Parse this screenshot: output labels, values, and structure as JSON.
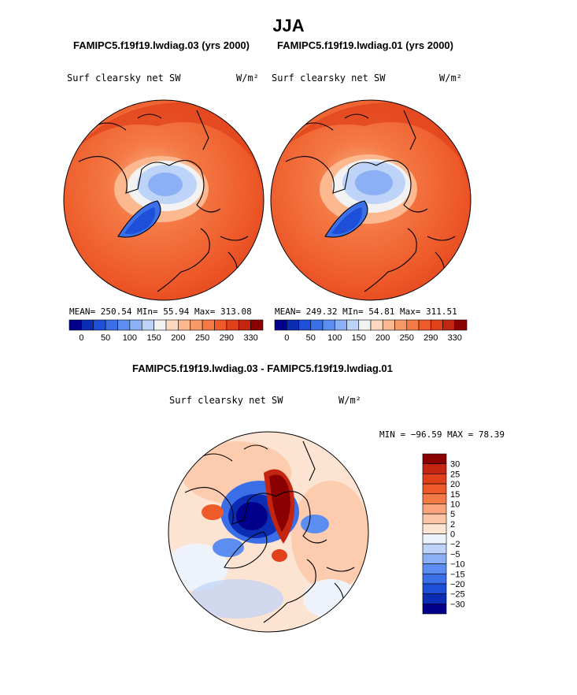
{
  "figure": {
    "season": "JJA",
    "case1_title": "FAMIPC5.f19f19.lwdiag.03 (yrs 2000)",
    "case2_title": "FAMIPC5.f19f19.lwdiag.01 (yrs 2000)",
    "diff_title": "FAMIPC5.f19f19.lwdiag.03 - FAMIPC5.f19f19.lwdiag.01",
    "variable": "Surf clearsky net SW",
    "units": "W/m²"
  },
  "panels": {
    "case1": {
      "stats": "MEAN= 250.54   MIn=  55.94   Max= 313.08"
    },
    "case2": {
      "stats": "MEAN= 249.32   MIn=  54.81   Max= 311.51"
    },
    "diff": {
      "stats": "MIN = −96.59 MAX =  78.39"
    }
  },
  "colors": {
    "abs_scale": [
      "#00008b",
      "#0a2db4",
      "#1e4fd8",
      "#3b6fe8",
      "#5b8ef0",
      "#8cb0f5",
      "#bdd3f8",
      "#f2f2f2",
      "#fdd8c0",
      "#fcb990",
      "#f89a68",
      "#f47a46",
      "#ee5a2a",
      "#e0401a",
      "#c42510",
      "#8b0000"
    ],
    "diff_scale": [
      "#00008b",
      "#0a2db4",
      "#1e4fd8",
      "#3b6fe8",
      "#5b8ef0",
      "#8cb0f5",
      "#bdd3f8",
      "#eef3fb",
      "#fde3d2",
      "#fcc6a6",
      "#f9a47c",
      "#f47a46",
      "#ee5a2a",
      "#e0401a",
      "#c42510",
      "#8b0000"
    ]
  },
  "chart_data": [
    {
      "type": "heatmap",
      "title": "FAMIPC5.f19f19.lwdiag.03 (yrs 2000)",
      "variable": "Surf clearsky net SW",
      "units": "W/m2",
      "projection": "north polar stereographic",
      "stats": {
        "mean": 250.54,
        "min": 55.94,
        "max": 313.08
      },
      "colorbar_ticks": [
        "0",
        "50",
        "100",
        "150",
        "200",
        "250",
        "290",
        "330"
      ]
    },
    {
      "type": "heatmap",
      "title": "FAMIPC5.f19f19.lwdiag.01 (yrs 2000)",
      "variable": "Surf clearsky net SW",
      "units": "W/m2",
      "projection": "north polar stereographic",
      "stats": {
        "mean": 249.32,
        "min": 54.81,
        "max": 311.51
      },
      "colorbar_ticks": [
        "0",
        "50",
        "100",
        "150",
        "200",
        "250",
        "290",
        "330"
      ]
    },
    {
      "type": "heatmap",
      "title": "FAMIPC5.f19f19.lwdiag.03 - FAMIPC5.f19f19.lwdiag.01",
      "variable": "Surf clearsky net SW",
      "units": "W/m2",
      "projection": "north polar stereographic",
      "stats": {
        "min": -96.59,
        "max": 78.39
      },
      "colorbar_levels": [
        "30",
        "25",
        "20",
        "15",
        "10",
        "5",
        "2",
        "0",
        "−2",
        "−5",
        "−10",
        "−15",
        "−20",
        "−25",
        "−30"
      ]
    }
  ]
}
